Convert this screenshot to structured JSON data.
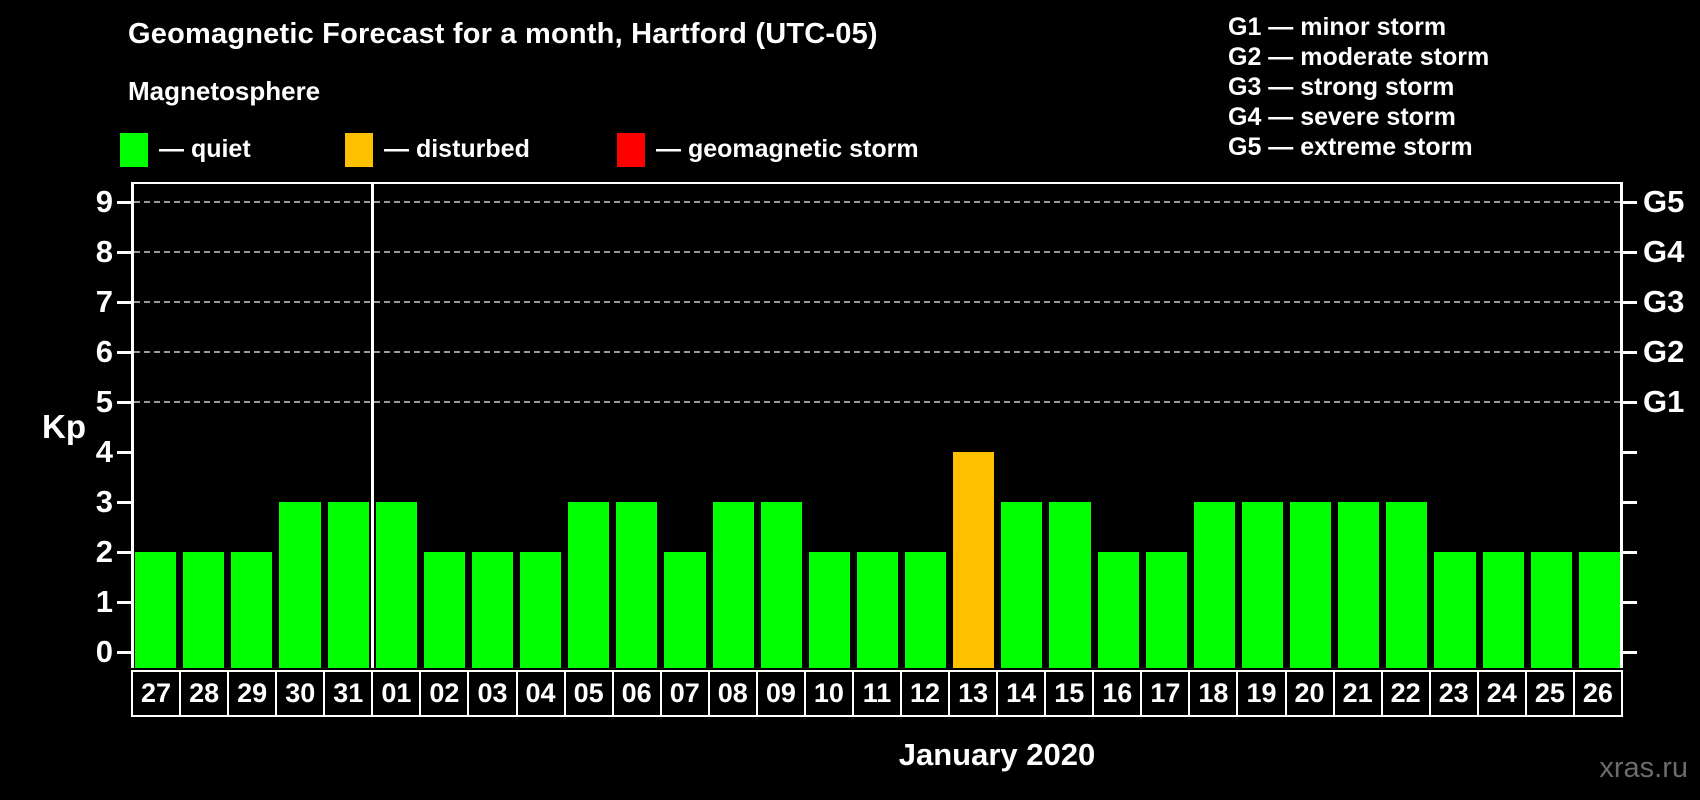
{
  "title": "Geomagnetic Forecast for a month, Hartford (UTC-05)",
  "legend": {
    "heading": "Magnetosphere",
    "items": [
      {
        "status": "quiet",
        "label": "— quiet",
        "color": "#00ff00"
      },
      {
        "status": "disturbed",
        "label": "— disturbed",
        "color": "#ffc000"
      },
      {
        "status": "storm",
        "label": "— geomagnetic storm",
        "color": "#ff0000"
      }
    ]
  },
  "storm_scale": [
    "G1 — minor storm",
    "G2 — moderate storm",
    "G3 — strong storm",
    "G4 — severe storm",
    "G5 — extreme storm"
  ],
  "watermark": "xras.ru",
  "chart_data": {
    "type": "bar",
    "title": "Geomagnetic Forecast for a month, Hartford (UTC-05)",
    "xlabel": "January 2020",
    "ylabel": "Kp",
    "ylim": [
      0,
      9
    ],
    "grid": "dashed horizontal at G-storm levels 5-9",
    "legend_position": "top",
    "categories": [
      "27",
      "28",
      "29",
      "30",
      "31",
      "01",
      "02",
      "03",
      "04",
      "05",
      "06",
      "07",
      "08",
      "09",
      "10",
      "11",
      "12",
      "13",
      "14",
      "15",
      "16",
      "17",
      "18",
      "19",
      "20",
      "21",
      "22",
      "23",
      "24",
      "25",
      "26"
    ],
    "values": [
      2,
      2,
      2,
      3,
      3,
      3,
      2,
      2,
      2,
      3,
      3,
      2,
      3,
      3,
      2,
      2,
      2,
      4,
      3,
      3,
      2,
      2,
      3,
      3,
      3,
      3,
      3,
      2,
      2,
      2,
      2
    ],
    "statuses": [
      "quiet",
      "quiet",
      "quiet",
      "quiet",
      "quiet",
      "quiet",
      "quiet",
      "quiet",
      "quiet",
      "quiet",
      "quiet",
      "quiet",
      "quiet",
      "quiet",
      "quiet",
      "quiet",
      "quiet",
      "disturbed",
      "quiet",
      "quiet",
      "quiet",
      "quiet",
      "quiet",
      "quiet",
      "quiet",
      "quiet",
      "quiet",
      "quiet",
      "quiet",
      "quiet",
      "quiet"
    ],
    "yticks": [
      0,
      1,
      2,
      3,
      4,
      5,
      6,
      7,
      8,
      9
    ],
    "right_axis": [
      {
        "kp": 5,
        "label": "G1"
      },
      {
        "kp": 6,
        "label": "G2"
      },
      {
        "kp": 7,
        "label": "G3"
      },
      {
        "kp": 8,
        "label": "G4"
      },
      {
        "kp": 9,
        "label": "G5"
      }
    ],
    "gridline_levels": [
      5,
      6,
      7,
      8,
      9
    ],
    "month_boundary_index": 5
  }
}
